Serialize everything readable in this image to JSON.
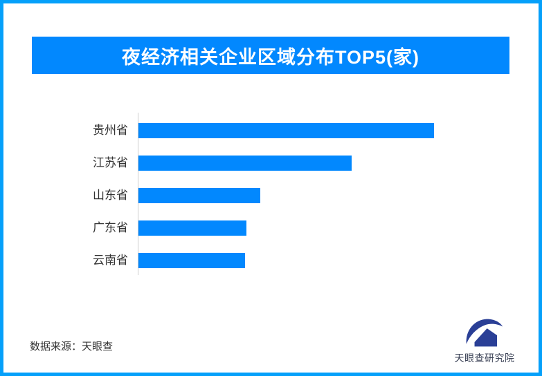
{
  "page": {
    "border_color": "#05a0fa",
    "background_color": "#ffffff"
  },
  "header": {
    "title": "夜经济相关企业区域分布TOP5(家)",
    "banner_color": "#0288fe",
    "title_color": "#ffffff"
  },
  "chart_data": {
    "type": "bar",
    "orientation": "horizontal",
    "title": "夜经济相关企业区域分布TOP5(家)",
    "categories": [
      "贵州省",
      "江苏省",
      "山东省",
      "广东省",
      "云南省"
    ],
    "values": [
      427,
      308,
      176,
      156,
      154
    ],
    "xlim": [
      0,
      537
    ],
    "xlabel": "",
    "ylabel": "",
    "grid": false,
    "legend": false,
    "data_labels": false,
    "bar_color": "#0288fe",
    "axis_line_color": "#cccccc",
    "category_label_color": "#333333"
  },
  "footer": {
    "source_label": "数据来源：天眼查",
    "brand": {
      "name": "天眼查研究院",
      "logo_color": "#2a3f96",
      "name_color": "#3c4357"
    }
  }
}
